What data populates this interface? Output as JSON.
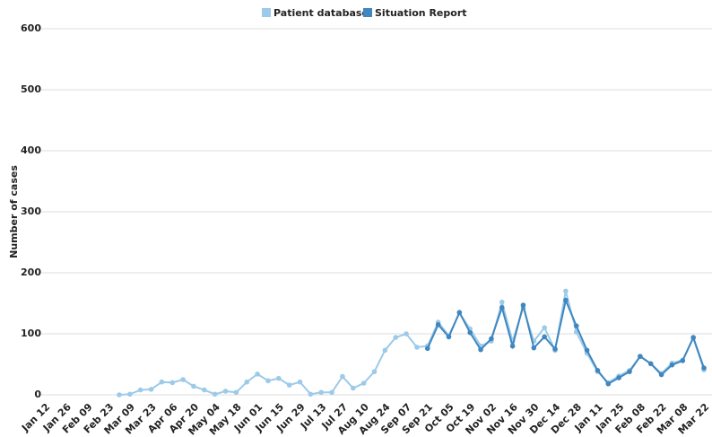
{
  "chart_data": {
    "type": "line",
    "y_label": "Number of cases",
    "categories": [
      "Jan 12",
      null,
      "Jan 26",
      null,
      "Feb 09",
      null,
      "Feb 23",
      null,
      "Mar 09",
      null,
      "Mar 23",
      null,
      "Apr 06",
      null,
      "Apr 20",
      null,
      "May 04",
      null,
      "May 18",
      null,
      "Jun 01",
      null,
      "Jun 15",
      null,
      "Jun 29",
      null,
      "Jul 13",
      null,
      "Jul 27",
      null,
      "Aug 10",
      null,
      "Aug 24",
      null,
      "Sep 07",
      null,
      "Sep 21",
      null,
      "Oct 05",
      null,
      "Oct 19",
      null,
      "Nov 02",
      null,
      "Nov 16",
      null,
      "Nov 30",
      null,
      "Dec 14",
      null,
      "Dec 28",
      null,
      "Jan 11",
      null,
      "Jan 25",
      null,
      "Feb 08",
      null,
      "Feb 22",
      null,
      "Mar 08",
      null,
      "Mar 22"
    ],
    "series": [
      {
        "name": "Patient database",
        "color": "#9ccae8",
        "values": [
          null,
          null,
          null,
          null,
          null,
          null,
          null,
          0,
          1,
          8,
          9,
          21,
          20,
          25,
          14,
          8,
          1,
          6,
          4,
          21,
          34,
          23,
          27,
          16,
          21,
          1,
          4,
          4,
          30,
          11,
          19,
          38,
          73,
          94,
          100,
          78,
          80,
          119,
          97,
          134,
          108,
          80,
          88,
          152,
          88,
          143,
          88,
          110,
          73,
          170,
          103,
          68,
          38,
          20,
          31,
          40,
          63,
          51,
          35,
          52,
          57,
          93,
          41
        ]
      },
      {
        "name": "Situation Report",
        "color": "#3f87c0",
        "values": [
          null,
          null,
          null,
          null,
          null,
          null,
          null,
          null,
          null,
          null,
          null,
          null,
          null,
          null,
          null,
          null,
          null,
          null,
          null,
          null,
          null,
          null,
          null,
          null,
          null,
          null,
          null,
          null,
          null,
          null,
          null,
          null,
          null,
          null,
          null,
          null,
          76,
          115,
          95,
          135,
          102,
          74,
          92,
          143,
          80,
          147,
          77,
          95,
          75,
          155,
          113,
          73,
          40,
          18,
          28,
          38,
          63,
          51,
          33,
          49,
          56,
          94,
          44
        ]
      }
    ],
    "ylim": [
      0,
      600
    ],
    "yticks": [
      0,
      100,
      200,
      300,
      400,
      500,
      600
    ],
    "grid": true,
    "legend": "top"
  }
}
